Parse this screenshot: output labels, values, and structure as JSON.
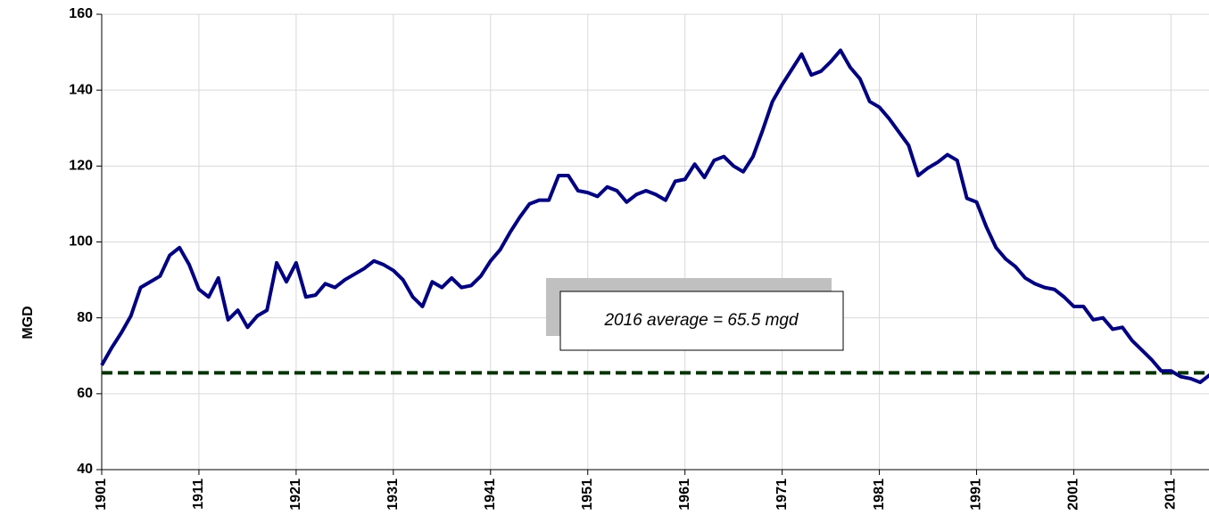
{
  "chart_data": {
    "type": "line",
    "ylabel": "MGD",
    "x": [
      1901,
      1902,
      1903,
      1904,
      1905,
      1906,
      1907,
      1908,
      1909,
      1910,
      1911,
      1912,
      1913,
      1914,
      1915,
      1916,
      1917,
      1918,
      1919,
      1920,
      1921,
      1922,
      1923,
      1924,
      1925,
      1926,
      1927,
      1928,
      1929,
      1930,
      1931,
      1932,
      1933,
      1934,
      1935,
      1936,
      1937,
      1938,
      1939,
      1940,
      1941,
      1942,
      1943,
      1944,
      1945,
      1946,
      1947,
      1948,
      1949,
      1950,
      1951,
      1952,
      1953,
      1954,
      1955,
      1956,
      1957,
      1958,
      1959,
      1960,
      1961,
      1962,
      1963,
      1964,
      1965,
      1966,
      1967,
      1968,
      1969,
      1970,
      1971,
      1972,
      1973,
      1974,
      1975,
      1976,
      1977,
      1978,
      1979,
      1980,
      1981,
      1982,
      1983,
      1984,
      1985,
      1986,
      1987,
      1988,
      1989,
      1990,
      1991,
      1992,
      1993,
      1994,
      1995,
      1996,
      1997,
      1998,
      1999,
      2000,
      2001,
      2002,
      2003,
      2004,
      2005,
      2006,
      2007,
      2008,
      2009,
      2010,
      2011,
      2012,
      2013,
      2014,
      2015
    ],
    "series": [
      {
        "color": "#000080",
        "values": [
          67.5,
          72,
          76,
          80.5,
          88,
          89.5,
          91,
          96.5,
          98.5,
          94,
          87.5,
          85.5,
          90.5,
          79.5,
          82,
          77.5,
          80.5,
          82,
          94.5,
          89.5,
          94.5,
          85.5,
          86,
          89,
          88,
          90,
          91.5,
          93,
          95,
          94,
          92.5,
          90,
          85.5,
          83,
          89.5,
          88,
          90.5,
          88,
          88.5,
          91,
          95,
          98,
          102.5,
          106.5,
          110,
          111,
          111,
          117.5,
          117.5,
          113.5,
          113,
          112,
          114.5,
          113.5,
          110.5,
          112.5,
          113.5,
          112.5,
          111,
          116,
          116.5,
          120.5,
          117,
          121.5,
          122.5,
          120,
          118.5,
          122.5,
          129.5,
          137,
          141.5,
          145.5,
          149.5,
          144,
          145,
          147.5,
          150.5,
          146,
          143,
          137,
          135.5,
          132.5,
          129,
          125.5,
          117.5,
          119.5,
          121,
          123,
          121.5,
          111.5,
          110.5,
          104,
          98.5,
          95.5,
          93.5,
          90.5,
          89,
          88,
          87.5,
          85.5,
          83,
          83,
          79.5,
          80,
          77,
          77.5,
          74,
          71.5,
          69,
          66,
          66,
          64.5,
          64,
          63,
          65
        ]
      }
    ],
    "reference_line": {
      "value": 65.5,
      "color": "#003300",
      "annotation": "2016 average = 65.5 mgd"
    },
    "xlim": [
      1901,
      2015
    ],
    "xticks": [
      1901,
      1911,
      1921,
      1931,
      1941,
      1951,
      1961,
      1971,
      1981,
      1991,
      2001,
      2011
    ],
    "ylim": [
      40,
      160
    ],
    "yticks": [
      40,
      60,
      80,
      100,
      120,
      140,
      160
    ],
    "grid": true
  }
}
